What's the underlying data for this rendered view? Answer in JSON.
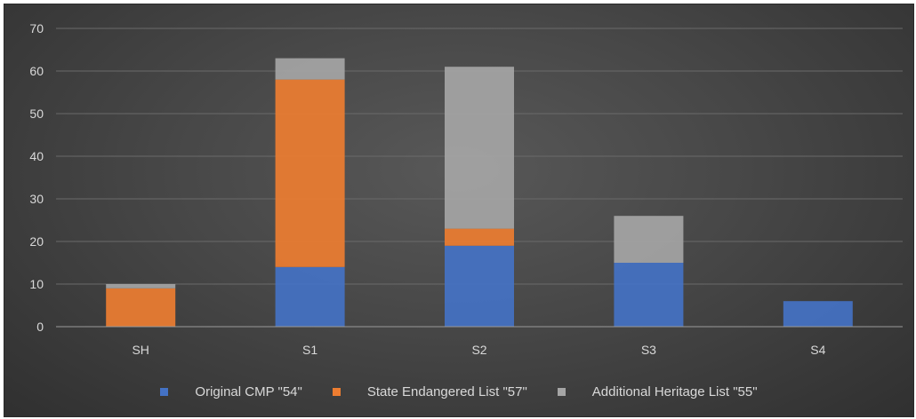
{
  "chart_data": {
    "type": "bar",
    "stacked": true,
    "categories": [
      "SH",
      "S1",
      "S2",
      "S3",
      "S4"
    ],
    "series": [
      {
        "name": "Original CMP \"54\"",
        "color": "#4472C4",
        "values": [
          0,
          14,
          19,
          15,
          6
        ]
      },
      {
        "name": "State Endangered List \"57\"",
        "color": "#ED7D31",
        "values": [
          9,
          44,
          4,
          0,
          0
        ]
      },
      {
        "name": "Additional Heritage List \"55\"",
        "color": "#A5A5A5",
        "values": [
          1,
          5,
          38,
          11,
          0
        ]
      }
    ],
    "y_ticks": [
      "0",
      "10",
      "20",
      "30",
      "40",
      "50",
      "60",
      "70"
    ],
    "ylim": [
      0,
      70
    ],
    "grid": true,
    "legend_position": "bottom",
    "title": "",
    "xlabel": "",
    "ylabel": ""
  }
}
